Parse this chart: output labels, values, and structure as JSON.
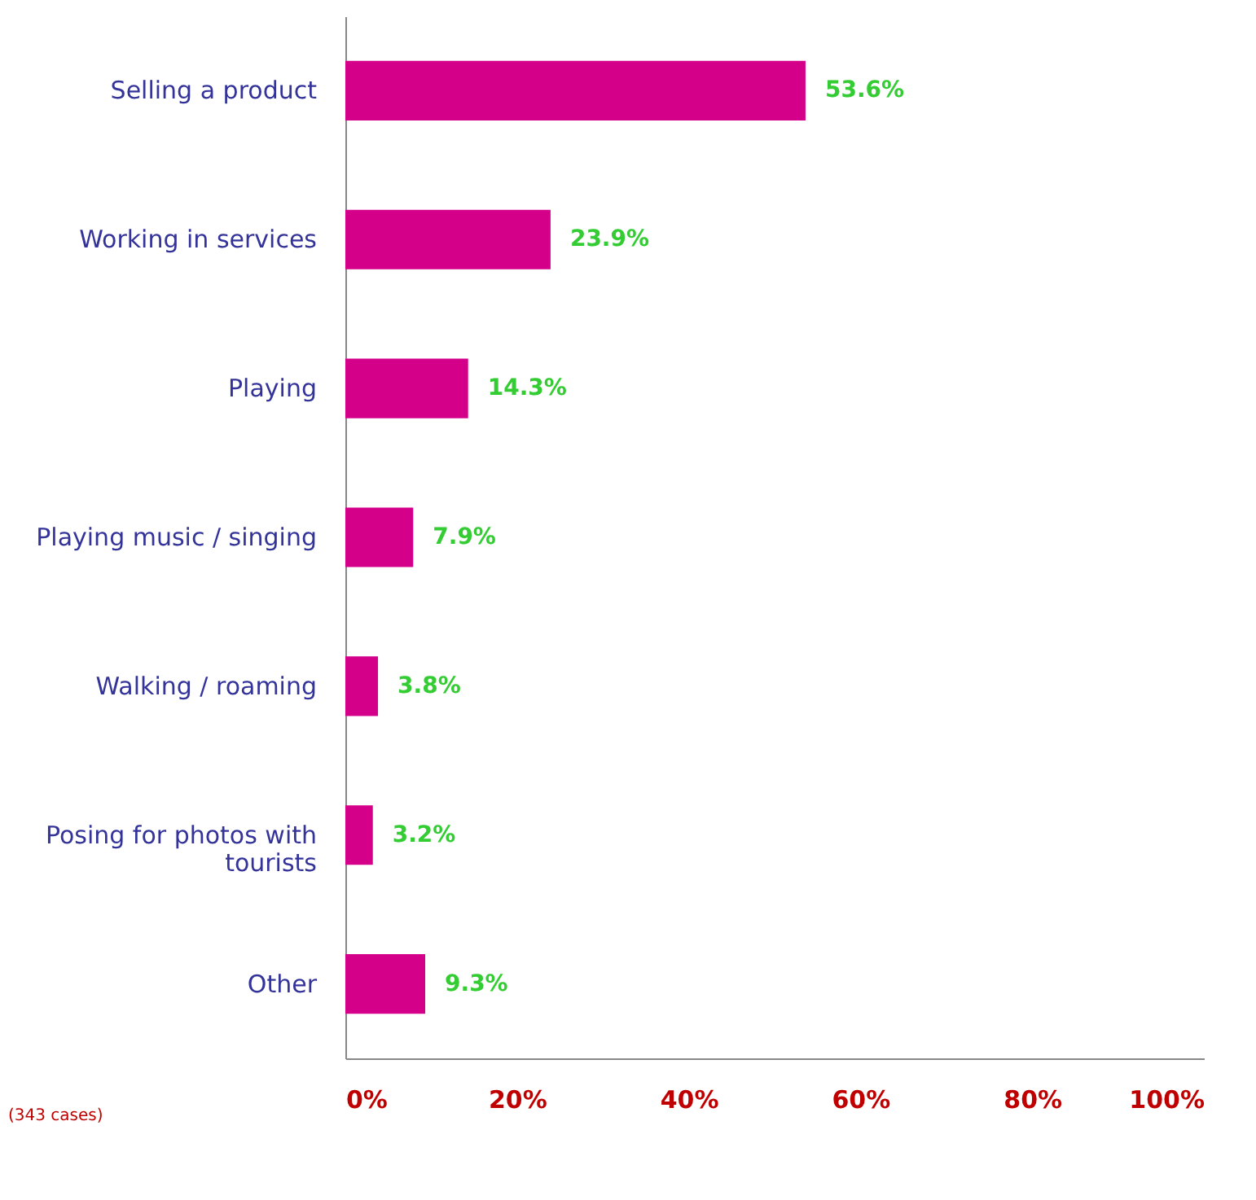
{
  "chart_data": {
    "type": "bar",
    "orientation": "horizontal",
    "categories": [
      "Selling a product",
      "Working in services",
      "Playing",
      "Playing music / singing",
      "Walking / roaming",
      "Posing for photos with tourists",
      "Other"
    ],
    "values": [
      53.6,
      23.9,
      14.3,
      7.9,
      3.8,
      3.2,
      9.3
    ],
    "color": "#d4008a",
    "value_labels": [
      "53.6%",
      "23.9%",
      "14.3%",
      "7.9%",
      "3.8%",
      "3.2%",
      "9.3%"
    ],
    "xlim": [
      0,
      100
    ],
    "xticks": [
      {
        "value": 0,
        "label": "0%"
      },
      {
        "value": 20,
        "label": "20%"
      },
      {
        "value": 40,
        "label": "40%"
      },
      {
        "value": 60,
        "label": "60%"
      },
      {
        "value": 80,
        "label": "80%"
      },
      {
        "value": 100,
        "label": "100%"
      }
    ],
    "grid": false,
    "annotations": [
      "(343 cases)"
    ]
  }
}
